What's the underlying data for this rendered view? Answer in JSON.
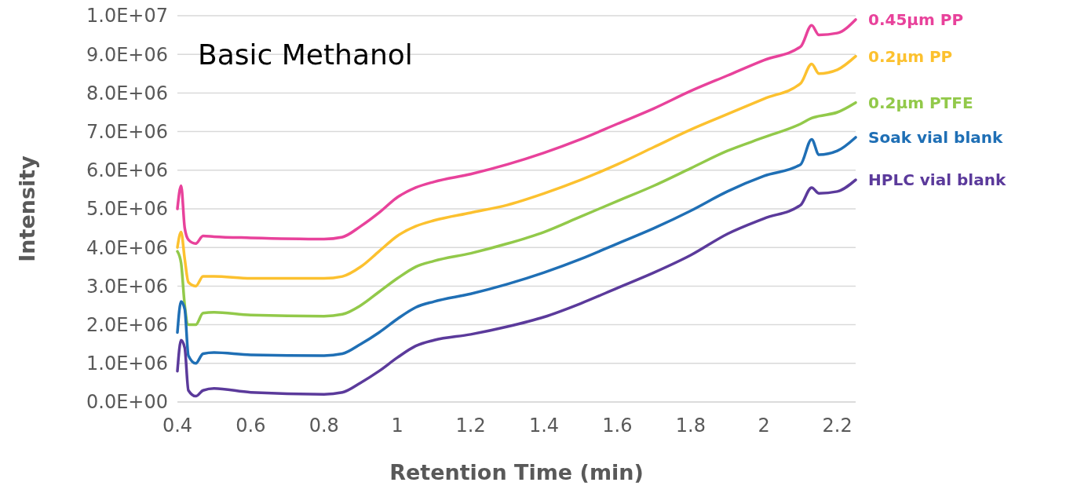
{
  "chart_data": {
    "type": "line",
    "title": "Basic Methanol",
    "xlabel": "Retention Time (min)",
    "ylabel": "Intensity",
    "x": [
      0.4,
      0.41,
      0.42,
      0.43,
      0.45,
      0.47,
      0.5,
      0.6,
      0.8,
      0.85,
      0.9,
      0.95,
      1.0,
      1.05,
      1.1,
      1.2,
      1.3,
      1.4,
      1.5,
      1.6,
      1.7,
      1.8,
      1.9,
      2.0,
      2.1,
      2.13,
      2.15,
      2.2,
      2.25
    ],
    "series": [
      {
        "name": "0.45µm PP",
        "color": "#e8429b",
        "values": [
          5000000,
          5600000,
          4500000,
          4200000,
          4100000,
          4300000,
          4280000,
          4250000,
          4220000,
          4270000,
          4550000,
          4900000,
          5300000,
          5550000,
          5700000,
          5900000,
          6150000,
          6450000,
          6800000,
          7200000,
          7600000,
          8050000,
          8450000,
          8850000,
          9200000,
          9750000,
          9500000,
          9550000,
          9900000
        ]
      },
      {
        "name": "0.2µm PP",
        "color": "#fcc12f",
        "values": [
          4000000,
          4400000,
          3700000,
          3100000,
          3000000,
          3250000,
          3250000,
          3200000,
          3200000,
          3250000,
          3500000,
          3900000,
          4300000,
          4550000,
          4700000,
          4900000,
          5100000,
          5400000,
          5750000,
          6150000,
          6600000,
          7050000,
          7450000,
          7850000,
          8250000,
          8750000,
          8500000,
          8600000,
          8950000
        ]
      },
      {
        "name": "0.2µm PTFE",
        "color": "#92c94a",
        "values": [
          3900000,
          3600000,
          2500000,
          2000000,
          2000000,
          2300000,
          2320000,
          2250000,
          2220000,
          2270000,
          2500000,
          2850000,
          3200000,
          3500000,
          3650000,
          3850000,
          4100000,
          4400000,
          4800000,
          5200000,
          5600000,
          6050000,
          6500000,
          6850000,
          7200000,
          7350000,
          7400000,
          7500000,
          7750000
        ]
      },
      {
        "name": "Soak vial blank",
        "color": "#1f6fb5",
        "values": [
          1800000,
          2600000,
          2400000,
          1200000,
          1000000,
          1250000,
          1280000,
          1220000,
          1200000,
          1250000,
          1500000,
          1800000,
          2150000,
          2450000,
          2600000,
          2800000,
          3050000,
          3350000,
          3700000,
          4100000,
          4500000,
          4950000,
          5450000,
          5850000,
          6150000,
          6800000,
          6400000,
          6500000,
          6850000
        ]
      },
      {
        "name": "HPLC vial blank",
        "color": "#5b3a9b",
        "values": [
          800000,
          1600000,
          1400000,
          300000,
          150000,
          300000,
          350000,
          250000,
          200000,
          250000,
          500000,
          800000,
          1150000,
          1450000,
          1600000,
          1750000,
          1950000,
          2200000,
          2550000,
          2950000,
          3350000,
          3800000,
          4350000,
          4750000,
          5100000,
          5550000,
          5400000,
          5450000,
          5750000
        ]
      }
    ],
    "xlim": [
      0.4,
      2.25
    ],
    "xticks": [
      0.4,
      0.6,
      0.8,
      1,
      1.2,
      1.4,
      1.6,
      1.8,
      2,
      2.2
    ],
    "ylim": [
      0,
      10000000
    ],
    "yticks": [
      {
        "value": 0,
        "label": "0.0E+00"
      },
      {
        "value": 1000000,
        "label": "1.0E+06"
      },
      {
        "value": 2000000,
        "label": "2.0E+06"
      },
      {
        "value": 3000000,
        "label": "3.0E+06"
      },
      {
        "value": 4000000,
        "label": "4.0E+06"
      },
      {
        "value": 5000000,
        "label": "5.0E+06"
      },
      {
        "value": 6000000,
        "label": "6.0E+06"
      },
      {
        "value": 7000000,
        "label": "7.0E+06"
      },
      {
        "value": 8000000,
        "label": "8.0E+06"
      },
      {
        "value": 9000000,
        "label": "9.0E+06"
      },
      {
        "value": 10000000,
        "label": "1.0E+07"
      }
    ],
    "grid": "y",
    "legend": false,
    "marker": "none",
    "line_style": "solid"
  }
}
